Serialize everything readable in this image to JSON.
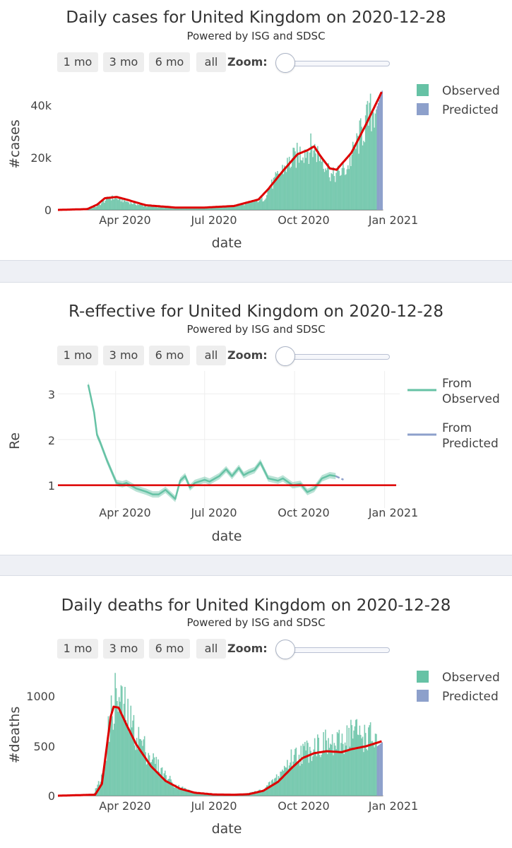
{
  "colors": {
    "observed": "#66c2a5",
    "predicted": "#8da0cb",
    "fit": "#dd0000",
    "grid": "#eeeeee",
    "separator": "#eef0f5"
  },
  "range_selector": {
    "buttons": [
      "1 mo",
      "3 mo",
      "6 mo",
      "all"
    ],
    "zoom_label": "Zoom:"
  },
  "chart_data": [
    {
      "type": "bar",
      "title": "Daily cases for United Kingdom on 2020-12-28",
      "subtitle": "Powered by ISG and SDSC",
      "xlabel": "date",
      "ylabel": "#cases",
      "x_ticks": [
        "Apr 2020",
        "Jul 2020",
        "Oct 2020",
        "Jan 2021"
      ],
      "y_ticks": [
        "0",
        "20k",
        "40k"
      ],
      "y_tick_values": [
        0,
        20000,
        40000
      ],
      "ylim": [
        0,
        48000
      ],
      "legend": [
        "Observed",
        "Predicted"
      ],
      "legend_position": "top-right",
      "start_date": "2020-02-01",
      "observed_knots": [
        [
          0,
          0
        ],
        [
          30,
          200
        ],
        [
          40,
          1500
        ],
        [
          52,
          4800
        ],
        [
          62,
          4200
        ],
        [
          75,
          2600
        ],
        [
          90,
          1400
        ],
        [
          120,
          700
        ],
        [
          150,
          700
        ],
        [
          180,
          1400
        ],
        [
          210,
          4200
        ],
        [
          215,
          8000
        ],
        [
          230,
          16000
        ],
        [
          250,
          23000
        ],
        [
          260,
          24000
        ],
        [
          270,
          20000
        ],
        [
          280,
          13000
        ],
        [
          295,
          16000
        ],
        [
          310,
          30000
        ],
        [
          326,
          42000
        ],
        [
          331,
          46000
        ]
      ],
      "observed_noise": 0.25,
      "predicted": {
        "start": 326,
        "end": 331,
        "values": [
          40000,
          46000
        ]
      },
      "fit_knots": [
        [
          0,
          0
        ],
        [
          30,
          300
        ],
        [
          40,
          2000
        ],
        [
          48,
          4500
        ],
        [
          60,
          5000
        ],
        [
          70,
          4000
        ],
        [
          90,
          1800
        ],
        [
          120,
          900
        ],
        [
          150,
          900
        ],
        [
          180,
          1500
        ],
        [
          205,
          4000
        ],
        [
          215,
          8000
        ],
        [
          230,
          15000
        ],
        [
          245,
          21500
        ],
        [
          255,
          23000
        ],
        [
          262,
          24500
        ],
        [
          268,
          21000
        ],
        [
          278,
          16000
        ],
        [
          285,
          15500
        ],
        [
          300,
          22000
        ],
        [
          315,
          33000
        ],
        [
          331,
          45500
        ]
      ]
    },
    {
      "type": "line",
      "title": "R-effective for United Kingdom on 2020-12-28",
      "subtitle": "Powered by ISG and SDSC",
      "xlabel": "date",
      "ylabel": "Re",
      "x_ticks": [
        "Apr 2020",
        "Jul 2020",
        "Oct 2020",
        "Jan 2021"
      ],
      "y_ticks": [
        "1",
        "2",
        "3"
      ],
      "y_tick_values": [
        1,
        2,
        3
      ],
      "ylim": [
        0.5,
        3.5
      ],
      "grid": true,
      "legend": [
        "From Observed",
        "From Predicted"
      ],
      "legend_position": "top-right",
      "start_date": "2020-02-01",
      "observed_series": [
        [
          31,
          3.2
        ],
        [
          34,
          2.9
        ],
        [
          37,
          2.6
        ],
        [
          40,
          2.1
        ],
        [
          43,
          1.95
        ],
        [
          50,
          1.55
        ],
        [
          57,
          1.2
        ],
        [
          60,
          1.05
        ],
        [
          66,
          1.02
        ],
        [
          70,
          1.05
        ],
        [
          80,
          0.93
        ],
        [
          90,
          0.86
        ],
        [
          97,
          0.8
        ],
        [
          103,
          0.8
        ],
        [
          110,
          0.9
        ],
        [
          115,
          0.8
        ],
        [
          120,
          0.7
        ],
        [
          125,
          1.1
        ],
        [
          130,
          1.2
        ],
        [
          135,
          0.95
        ],
        [
          140,
          1.05
        ],
        [
          150,
          1.12
        ],
        [
          155,
          1.08
        ],
        [
          165,
          1.2
        ],
        [
          172,
          1.35
        ],
        [
          178,
          1.2
        ],
        [
          185,
          1.38
        ],
        [
          190,
          1.22
        ],
        [
          195,
          1.28
        ],
        [
          201,
          1.33
        ],
        [
          207,
          1.5
        ],
        [
          215,
          1.15
        ],
        [
          225,
          1.1
        ],
        [
          230,
          1.15
        ],
        [
          240,
          1.0
        ],
        [
          248,
          1.03
        ],
        [
          255,
          0.85
        ],
        [
          262,
          0.92
        ],
        [
          270,
          1.15
        ],
        [
          278,
          1.22
        ],
        [
          284,
          1.2
        ]
      ],
      "observed_band": 0.07,
      "predicted_series": [
        [
          284,
          1.2
        ],
        [
          288,
          1.16
        ],
        [
          292,
          1.12
        ]
      ],
      "reference_line": 1
    },
    {
      "type": "bar",
      "title": "Daily deaths for United Kingdom on 2020-12-28",
      "subtitle": "Powered by ISG and SDSC",
      "xlabel": "date",
      "ylabel": "#deaths",
      "x_ticks": [
        "Apr 2020",
        "Jul 2020",
        "Oct 2020",
        "Jan 2021"
      ],
      "y_ticks": [
        "0",
        "500",
        "1000"
      ],
      "y_tick_values": [
        0,
        500,
        1000
      ],
      "ylim": [
        0,
        1250
      ],
      "legend": [
        "Observed",
        "Predicted"
      ],
      "legend_position": "top-right",
      "start_date": "2020-02-01",
      "observed_knots": [
        [
          0,
          0
        ],
        [
          35,
          0
        ],
        [
          45,
          200
        ],
        [
          52,
          700
        ],
        [
          58,
          1000
        ],
        [
          66,
          900
        ],
        [
          75,
          700
        ],
        [
          90,
          450
        ],
        [
          105,
          250
        ],
        [
          120,
          100
        ],
        [
          140,
          30
        ],
        [
          160,
          12
        ],
        [
          190,
          15
        ],
        [
          210,
          60
        ],
        [
          225,
          200
        ],
        [
          240,
          400
        ],
        [
          255,
          460
        ],
        [
          262,
          520
        ],
        [
          272,
          520
        ],
        [
          285,
          500
        ],
        [
          296,
          620
        ],
        [
          300,
          650
        ],
        [
          326,
          560
        ],
        [
          331,
          540
        ]
      ],
      "observed_noise": 0.3,
      "predicted": {
        "start": 326,
        "end": 331,
        "values": [
          500,
          540
        ]
      },
      "fit_knots": [
        [
          0,
          0
        ],
        [
          38,
          10
        ],
        [
          45,
          120
        ],
        [
          50,
          500
        ],
        [
          54,
          800
        ],
        [
          57,
          900
        ],
        [
          62,
          890
        ],
        [
          70,
          720
        ],
        [
          80,
          520
        ],
        [
          95,
          300
        ],
        [
          110,
          150
        ],
        [
          125,
          70
        ],
        [
          140,
          30
        ],
        [
          160,
          12
        ],
        [
          180,
          10
        ],
        [
          195,
          15
        ],
        [
          210,
          50
        ],
        [
          225,
          140
        ],
        [
          240,
          290
        ],
        [
          250,
          380
        ],
        [
          262,
          430
        ],
        [
          275,
          450
        ],
        [
          290,
          440
        ],
        [
          300,
          470
        ],
        [
          315,
          500
        ],
        [
          331,
          550
        ]
      ]
    }
  ]
}
